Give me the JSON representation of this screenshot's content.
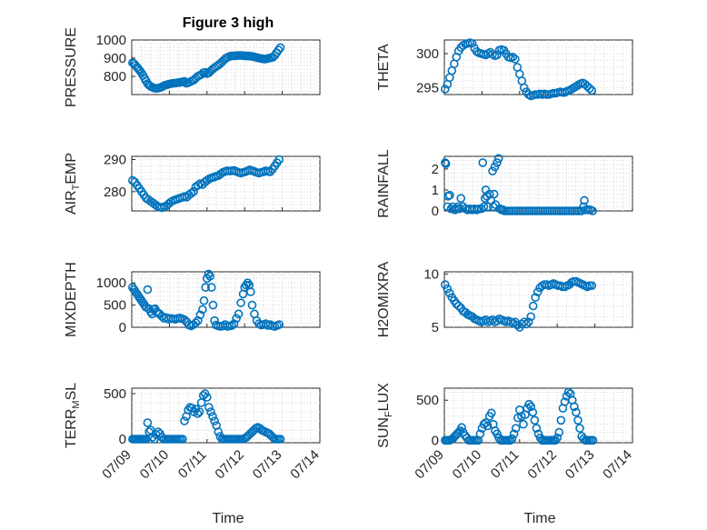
{
  "figure_title": "Figure 3 high",
  "x_axis_label": "Time",
  "x_tick_labels": [
    "07/09",
    "07/10",
    "07/11",
    "07/12",
    "07/13",
    "07/14"
  ],
  "marker_color": "#0072BD",
  "chart_data": [
    {
      "type": "scatter",
      "ylabel": "PRESSURE",
      "ylabel_sub": "",
      "title": "Figure 3 high",
      "xlim": [
        0,
        5
      ],
      "ylim": [
        700,
        1000
      ],
      "yticks": [
        800,
        900,
        1000
      ],
      "grid": true,
      "x": [
        0.02,
        0.06,
        0.1,
        0.14,
        0.18,
        0.22,
        0.26,
        0.3,
        0.34,
        0.38,
        0.42,
        0.46,
        0.5,
        0.55,
        0.6,
        0.65,
        0.7,
        0.75,
        0.8,
        0.85,
        0.9,
        0.95,
        1.0,
        1.05,
        1.1,
        1.15,
        1.2,
        1.25,
        1.3,
        1.35,
        1.4,
        1.45,
        1.5,
        1.55,
        1.6,
        1.65,
        1.7,
        1.75,
        1.8,
        1.85,
        1.9,
        1.95,
        2.0,
        2.05,
        2.1,
        2.15,
        2.2,
        2.25,
        2.3,
        2.35,
        2.4,
        2.45,
        2.5,
        2.55,
        2.6,
        2.65,
        2.7,
        2.75,
        2.8,
        2.85,
        2.9,
        2.95,
        3.0,
        3.05,
        3.1,
        3.15,
        3.2,
        3.25,
        3.3,
        3.35,
        3.4,
        3.45,
        3.5,
        3.55,
        3.6,
        3.65,
        3.7,
        3.75,
        3.8,
        3.85,
        3.9,
        3.95
      ],
      "y": [
        875,
        870,
        860,
        850,
        840,
        830,
        818,
        805,
        790,
        775,
        760,
        752,
        745,
        740,
        736,
        734,
        735,
        738,
        742,
        748,
        752,
        755,
        758,
        760,
        762,
        763,
        765,
        766,
        768,
        770,
        772,
        762,
        765,
        770,
        775,
        780,
        790,
        800,
        805,
        810,
        820,
        822,
        815,
        820,
        830,
        840,
        848,
        855,
        862,
        870,
        880,
        890,
        900,
        905,
        910,
        912,
        913,
        913,
        914,
        915,
        915,
        914,
        913,
        912,
        912,
        911,
        910,
        908,
        905,
        902,
        900,
        898,
        896,
        895,
        898,
        900,
        903,
        905,
        915,
        930,
        945,
        958
      ]
    },
    {
      "type": "scatter",
      "ylabel": "THETA",
      "ylabel_sub": "",
      "xlim": [
        0,
        5
      ],
      "ylim": [
        294,
        302
      ],
      "yticks": [
        295,
        300
      ],
      "grid": true,
      "x": [
        0.02,
        0.08,
        0.14,
        0.2,
        0.26,
        0.32,
        0.38,
        0.44,
        0.5,
        0.56,
        0.62,
        0.68,
        0.74,
        0.8,
        0.86,
        0.92,
        0.98,
        1.04,
        1.1,
        1.16,
        1.22,
        1.28,
        1.34,
        1.4,
        1.46,
        1.52,
        1.58,
        1.64,
        1.7,
        1.76,
        1.82,
        1.88,
        1.94,
        2.0,
        2.06,
        2.12,
        2.18,
        2.24,
        2.3,
        2.36,
        2.42,
        2.48,
        2.54,
        2.6,
        2.66,
        2.72,
        2.78,
        2.84,
        2.9,
        2.96,
        3.02,
        3.08,
        3.14,
        3.2,
        3.26,
        3.32,
        3.38,
        3.44,
        3.5,
        3.56,
        3.62,
        3.68,
        3.74,
        3.8,
        3.86,
        3.92
      ],
      "y": [
        294.8,
        295.5,
        296.5,
        297.5,
        298.5,
        299.5,
        300.4,
        300.9,
        301.2,
        301.4,
        301.5,
        301.6,
        301.5,
        300.8,
        300.3,
        300.1,
        300.0,
        299.9,
        299.8,
        300.0,
        300.2,
        299.9,
        299.7,
        299.8,
        300.5,
        300.6,
        300.5,
        300.0,
        299.5,
        299.4,
        299.5,
        299.2,
        298.0,
        297.0,
        296.0,
        295.0,
        294.4,
        294.0,
        293.8,
        293.9,
        294.0,
        294.0,
        294.1,
        294.0,
        294.1,
        294.0,
        294.0,
        294.1,
        294.2,
        294.2,
        294.3,
        294.4,
        294.3,
        294.3,
        294.5,
        294.6,
        294.8,
        295.0,
        295.2,
        295.4,
        295.6,
        295.7,
        295.5,
        295.2,
        294.9,
        294.6
      ]
    },
    {
      "type": "scatter",
      "ylabel": "AIR",
      "ylabel_sub": "T",
      "ylabel_rest": "EMP",
      "xlim": [
        0,
        5
      ],
      "ylim": [
        274,
        291
      ],
      "yticks": [
        280,
        290
      ],
      "grid": true,
      "x": [
        0.02,
        0.08,
        0.14,
        0.2,
        0.26,
        0.32,
        0.38,
        0.44,
        0.5,
        0.56,
        0.62,
        0.68,
        0.74,
        0.8,
        0.86,
        0.92,
        0.98,
        1.04,
        1.1,
        1.16,
        1.22,
        1.28,
        1.34,
        1.4,
        1.46,
        1.52,
        1.58,
        1.64,
        1.7,
        1.76,
        1.82,
        1.88,
        1.94,
        2.0,
        2.06,
        2.12,
        2.18,
        2.24,
        2.3,
        2.36,
        2.42,
        2.48,
        2.54,
        2.6,
        2.66,
        2.72,
        2.78,
        2.84,
        2.9,
        2.96,
        3.02,
        3.08,
        3.14,
        3.2,
        3.26,
        3.32,
        3.38,
        3.44,
        3.5,
        3.56,
        3.62,
        3.68,
        3.74,
        3.8,
        3.86,
        3.92
      ],
      "y": [
        283.5,
        283,
        282,
        281,
        280,
        279,
        278,
        277.5,
        277,
        276.5,
        276,
        275.5,
        275.2,
        275.0,
        275.3,
        275.6,
        276.2,
        276.8,
        277.2,
        277.5,
        277.7,
        278.0,
        278.2,
        278.5,
        278.3,
        279.0,
        279.5,
        280.0,
        281.5,
        282.0,
        282.5,
        282.2,
        283.0,
        283.5,
        284.0,
        284.3,
        284.5,
        284.8,
        285.0,
        285.5,
        286.0,
        286.3,
        286.5,
        286.4,
        286.5,
        286.6,
        286.3,
        286.0,
        285.8,
        286.0,
        286.2,
        286.5,
        286.8,
        286.5,
        286.3,
        286.0,
        285.8,
        286.0,
        286.2,
        286.5,
        286.3,
        286.2,
        287.0,
        288.0,
        289.0,
        290.0
      ]
    },
    {
      "type": "scatter",
      "ylabel": "RAINFALL",
      "ylabel_sub": "",
      "xlim": [
        0,
        5
      ],
      "ylim": [
        0,
        2.6
      ],
      "yticks": [
        0,
        1,
        2
      ],
      "grid": true,
      "x": [
        0.02,
        0.04,
        0.08,
        0.1,
        0.14,
        0.18,
        0.22,
        0.28,
        0.32,
        0.36,
        0.4,
        0.44,
        0.5,
        0.56,
        0.62,
        0.68,
        0.74,
        0.8,
        0.86,
        0.92,
        0.98,
        1.02,
        1.05,
        1.08,
        1.1,
        1.13,
        1.16,
        1.2,
        1.24,
        1.28,
        1.3,
        1.32,
        1.34,
        1.36,
        1.4,
        1.44,
        1.48,
        1.52,
        1.56,
        1.6,
        1.66,
        1.72,
        1.78,
        1.84,
        1.9,
        1.96,
        2.02,
        2.08,
        2.14,
        2.2,
        2.26,
        2.32,
        2.38,
        2.44,
        2.5,
        2.56,
        2.62,
        2.68,
        2.74,
        2.8,
        2.86,
        2.92,
        2.98,
        3.04,
        3.1,
        3.16,
        3.22,
        3.28,
        3.34,
        3.4,
        3.46,
        3.52,
        3.58,
        3.64,
        3.7,
        3.72,
        3.76,
        3.82,
        3.88,
        3.94
      ],
      "y": [
        2.3,
        2.25,
        0.2,
        0.7,
        0.75,
        0.1,
        0.2,
        0.05,
        0.1,
        0.2,
        0.1,
        0.6,
        0.2,
        0.1,
        0.05,
        0.1,
        0.05,
        0.1,
        0.05,
        0.1,
        0.1,
        2.3,
        0.2,
        0.6,
        1.0,
        0.7,
        0.2,
        0.8,
        0.5,
        1.9,
        0.2,
        0.8,
        2.1,
        0.3,
        2.3,
        2.5,
        0.1,
        0.05,
        0.05,
        0,
        0,
        0,
        0,
        0,
        0,
        0,
        0,
        0,
        0,
        0,
        0,
        0,
        0,
        0,
        0,
        0,
        0,
        0,
        0,
        0,
        0,
        0,
        0,
        0,
        0,
        0,
        0,
        0,
        0,
        0,
        0,
        0,
        0,
        0,
        0.2,
        0.5,
        0.05,
        0.05,
        0.05,
        0
      ]
    },
    {
      "type": "scatter",
      "ylabel": "MIXDEPTH",
      "ylabel_sub": "",
      "xlim": [
        0,
        5
      ],
      "ylim": [
        0,
        1250
      ],
      "yticks": [
        0,
        500,
        1000
      ],
      "grid": true,
      "x": [
        0.02,
        0.06,
        0.1,
        0.14,
        0.18,
        0.22,
        0.26,
        0.3,
        0.34,
        0.38,
        0.42,
        0.46,
        0.5,
        0.54,
        0.58,
        0.62,
        0.66,
        0.7,
        0.74,
        0.8,
        0.86,
        0.92,
        0.98,
        1.04,
        1.1,
        1.16,
        1.22,
        1.28,
        1.34,
        1.4,
        1.46,
        1.52,
        1.58,
        1.64,
        1.7,
        1.76,
        1.82,
        1.88,
        1.92,
        1.96,
        2.0,
        2.04,
        2.08,
        2.12,
        2.16,
        2.2,
        2.24,
        2.3,
        2.36,
        2.42,
        2.48,
        2.54,
        2.6,
        2.66,
        2.72,
        2.78,
        2.84,
        2.9,
        2.96,
        3.0,
        3.04,
        3.08,
        3.12,
        3.16,
        3.2,
        3.26,
        3.32,
        3.38,
        3.44,
        3.5,
        3.56,
        3.62,
        3.68,
        3.74,
        3.8,
        3.86,
        3.92
      ],
      "y": [
        900,
        850,
        800,
        750,
        700,
        650,
        600,
        550,
        500,
        450,
        850,
        420,
        350,
        300,
        400,
        420,
        350,
        320,
        300,
        250,
        200,
        220,
        180,
        200,
        190,
        180,
        200,
        210,
        190,
        170,
        120,
        50,
        30,
        60,
        100,
        150,
        280,
        400,
        600,
        900,
        1100,
        1200,
        1150,
        900,
        500,
        150,
        50,
        30,
        20,
        30,
        60,
        20,
        30,
        40,
        80,
        200,
        300,
        550,
        750,
        900,
        950,
        1000,
        950,
        800,
        500,
        300,
        150,
        80,
        50,
        60,
        80,
        40,
        60,
        30,
        20,
        40,
        60
      ]
    },
    {
      "type": "scatter",
      "ylabel": "H2OMIXRA",
      "ylabel_sub": "",
      "xlim": [
        0,
        5
      ],
      "ylim": [
        5,
        10.2
      ],
      "yticks": [
        5,
        10
      ],
      "grid": true,
      "x": [
        0.02,
        0.08,
        0.14,
        0.2,
        0.26,
        0.32,
        0.38,
        0.44,
        0.5,
        0.56,
        0.62,
        0.68,
        0.74,
        0.8,
        0.86,
        0.92,
        0.98,
        1.04,
        1.1,
        1.16,
        1.22,
        1.28,
        1.34,
        1.4,
        1.46,
        1.52,
        1.58,
        1.64,
        1.7,
        1.76,
        1.82,
        1.88,
        1.94,
        2.0,
        2.06,
        2.12,
        2.18,
        2.24,
        2.3,
        2.36,
        2.42,
        2.48,
        2.54,
        2.6,
        2.66,
        2.72,
        2.78,
        2.84,
        2.9,
        2.96,
        3.02,
        3.08,
        3.14,
        3.2,
        3.26,
        3.32,
        3.38,
        3.44,
        3.5,
        3.56,
        3.62,
        3.68,
        3.74,
        3.8,
        3.86,
        3.92
      ],
      "y": [
        9.0,
        8.6,
        8.2,
        7.8,
        7.5,
        7.2,
        7.0,
        6.8,
        6.5,
        6.4,
        6.2,
        6.1,
        6.0,
        5.8,
        5.7,
        5.6,
        5.5,
        5.6,
        5.7,
        5.5,
        5.6,
        5.7,
        5.5,
        5.6,
        5.8,
        5.7,
        5.6,
        5.5,
        5.6,
        5.5,
        5.4,
        5.5,
        5.2,
        5.0,
        5.3,
        5.5,
        5.3,
        5.5,
        6.0,
        7.0,
        7.8,
        8.3,
        8.7,
        8.9,
        9.0,
        9.0,
        8.9,
        9.0,
        9.1,
        9.0,
        8.9,
        8.9,
        8.8,
        8.8,
        8.9,
        9.0,
        9.2,
        9.3,
        9.3,
        9.2,
        9.1,
        9.0,
        8.9,
        8.8,
        8.9,
        8.9
      ]
    },
    {
      "type": "scatter",
      "ylabel": "TERR",
      "ylabel_sub": "M",
      "ylabel_rest": "SL",
      "xlim": [
        0,
        5
      ],
      "ylim": [
        -40,
        560
      ],
      "yticks": [
        0,
        500
      ],
      "grid": true,
      "x": [
        0.02,
        0.06,
        0.1,
        0.14,
        0.18,
        0.22,
        0.26,
        0.3,
        0.34,
        0.38,
        0.42,
        0.46,
        0.5,
        0.55,
        0.6,
        0.65,
        0.7,
        0.75,
        0.8,
        0.85,
        0.9,
        0.95,
        1.0,
        1.05,
        1.1,
        1.15,
        1.2,
        1.25,
        1.3,
        1.35,
        1.4,
        1.45,
        1.5,
        1.55,
        1.6,
        1.65,
        1.7,
        1.75,
        1.8,
        1.85,
        1.9,
        1.95,
        2.0,
        2.05,
        2.1,
        2.15,
        2.2,
        2.25,
        2.3,
        2.35,
        2.4,
        2.45,
        2.5,
        2.55,
        2.6,
        2.65,
        2.7,
        2.75,
        2.8,
        2.85,
        2.9,
        2.95,
        3.0,
        3.05,
        3.1,
        3.15,
        3.2,
        3.25,
        3.3,
        3.35,
        3.4,
        3.45,
        3.5,
        3.55,
        3.6,
        3.65,
        3.7,
        3.75,
        3.8,
        3.85,
        3.9,
        3.95
      ],
      "y": [
        0,
        0,
        0,
        0,
        0,
        0,
        0,
        0,
        0,
        0,
        180,
        80,
        100,
        20,
        0,
        50,
        80,
        60,
        20,
        0,
        0,
        0,
        0,
        0,
        0,
        0,
        0,
        0,
        0,
        0,
        200,
        250,
        320,
        350,
        340,
        300,
        330,
        280,
        300,
        400,
        480,
        500,
        460,
        350,
        300,
        250,
        200,
        150,
        80,
        30,
        0,
        0,
        0,
        0,
        0,
        0,
        0,
        0,
        0,
        0,
        0,
        0,
        10,
        20,
        40,
        60,
        80,
        100,
        120,
        130,
        120,
        100,
        90,
        80,
        70,
        60,
        40,
        20,
        0,
        0,
        0,
        0
      ]
    },
    {
      "type": "scatter",
      "ylabel": "SUN",
      "ylabel_sub": "F",
      "ylabel_rest": "LUX",
      "xlim": [
        0,
        5
      ],
      "ylim": [
        -30,
        650
      ],
      "yticks": [
        0,
        500
      ],
      "grid": true,
      "x": [
        0.02,
        0.06,
        0.1,
        0.14,
        0.18,
        0.22,
        0.26,
        0.3,
        0.34,
        0.38,
        0.42,
        0.46,
        0.5,
        0.55,
        0.6,
        0.65,
        0.7,
        0.75,
        0.8,
        0.85,
        0.9,
        0.95,
        1.0,
        1.05,
        1.1,
        1.15,
        1.2,
        1.25,
        1.3,
        1.35,
        1.4,
        1.45,
        1.5,
        1.55,
        1.6,
        1.65,
        1.7,
        1.75,
        1.8,
        1.85,
        1.9,
        1.95,
        2.0,
        2.05,
        2.1,
        2.15,
        2.2,
        2.25,
        2.3,
        2.35,
        2.4,
        2.45,
        2.5,
        2.55,
        2.6,
        2.65,
        2.7,
        2.75,
        2.8,
        2.85,
        2.9,
        2.95,
        3.0,
        3.05,
        3.1,
        3.15,
        3.2,
        3.25,
        3.3,
        3.35,
        3.4,
        3.45,
        3.5,
        3.55,
        3.6,
        3.65,
        3.7,
        3.75,
        3.8,
        3.85,
        3.9,
        3.95
      ],
      "y": [
        0,
        0,
        0,
        0,
        10,
        20,
        40,
        60,
        80,
        100,
        120,
        160,
        100,
        60,
        30,
        0,
        0,
        0,
        0,
        0,
        0,
        80,
        150,
        200,
        220,
        180,
        300,
        340,
        200,
        120,
        80,
        30,
        0,
        0,
        0,
        0,
        0,
        0,
        20,
        80,
        150,
        280,
        380,
        300,
        200,
        320,
        400,
        450,
        420,
        350,
        250,
        150,
        80,
        30,
        0,
        0,
        0,
        0,
        0,
        0,
        0,
        0,
        30,
        100,
        250,
        400,
        480,
        550,
        600,
        580,
        500,
        420,
        350,
        250,
        150,
        50,
        20,
        0,
        0,
        0,
        0,
        0
      ]
    }
  ]
}
